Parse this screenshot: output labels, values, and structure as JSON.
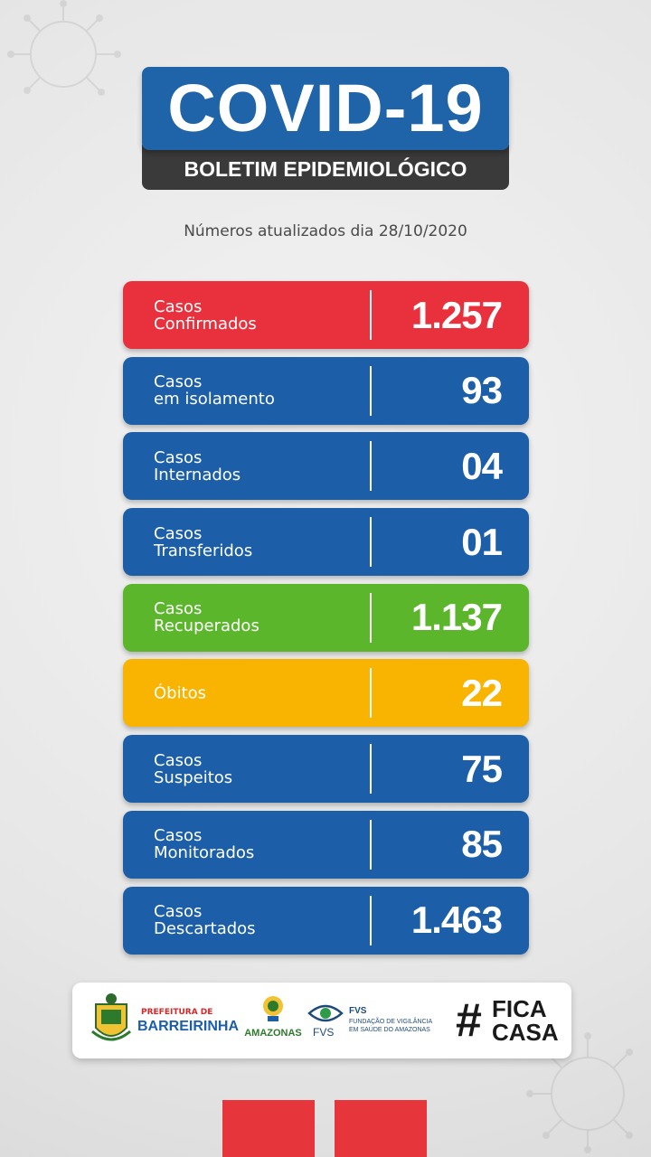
{
  "header": {
    "title": "COVID-19",
    "subtitle": "BOLETIM EPIDEMIOLÓGICO"
  },
  "updated": {
    "text": "Números atualizados dia  28/10/2020"
  },
  "rows": [
    {
      "label": "Casos\nConfirmados",
      "value": "1.257",
      "color": "#e8313c"
    },
    {
      "label": "Casos\nem isolamento",
      "value": "93",
      "color": "#1c5fa8"
    },
    {
      "label": "Casos\nInternados",
      "value": "04",
      "color": "#1c5fa8"
    },
    {
      "label": "Casos\nTransferidos",
      "value": "01",
      "color": "#1c5fa8"
    },
    {
      "label": "Casos\nRecuperados",
      "value": "1.137",
      "color": "#5bb62c"
    },
    {
      "label": "Óbitos",
      "value": "22",
      "color": "#f8b400"
    },
    {
      "label": "Casos\nSuspeitos",
      "value": "75",
      "color": "#1c5fa8"
    },
    {
      "label": "Casos\nMonitorados",
      "value": "85",
      "color": "#1c5fa8"
    },
    {
      "label": "Casos\nDescartados",
      "value": "1.463",
      "color": "#1c5fa8"
    }
  ],
  "footer": {
    "barreirinha_small": "PREFEITURA DE",
    "barreirinha_big": "BARREIRINHA",
    "amazonas": "AMAZONAS",
    "fvs_short": "FVS",
    "fvs_title": "FVS",
    "fvs_line1": "FUNDAÇÃO DE VIGILÂNCIA",
    "fvs_line2": "EM SAÚDE DO AMAZONAS",
    "fica_hash": "#",
    "fica_top": "FICA",
    "fica_bottom": "CASA"
  }
}
